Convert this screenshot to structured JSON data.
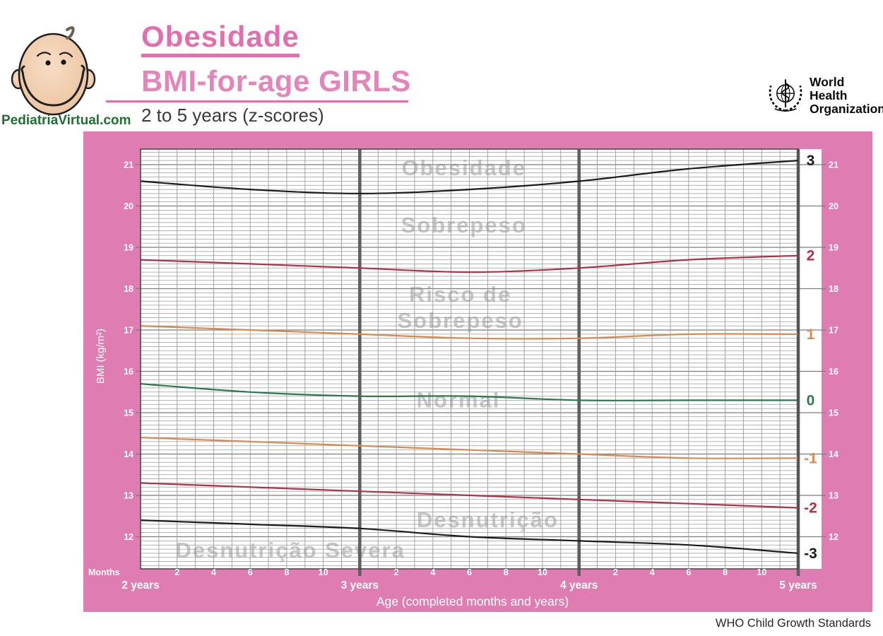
{
  "header": {
    "site": "PediatriaVirtual.com",
    "title": "Obesidade",
    "subtitle": "BMI-for-age GIRLS",
    "age_range": "2 to 5 years (z-scores)",
    "who_line1": "World Health",
    "who_line2": "Organization"
  },
  "footer": {
    "credit": "WHO Child Growth Standards"
  },
  "colors": {
    "band_pink": "#df7db2",
    "title_pink": "#e26fad",
    "grid_minor": "#9a9a9a",
    "grid_major": "#7c7c7c",
    "year_line": "#606060",
    "plot_border": "#4a4a4a",
    "watermark": "#c7c7c7",
    "axis_text": "#ffffff",
    "z3_black": "#1c1c1c",
    "z2_red": "#b23048",
    "z1_orange": "#d8894f",
    "z0_green": "#2b7a4e"
  },
  "chart_data": {
    "type": "line",
    "title": "Obesidade — BMI-for-age GIRLS, 2 to 5 years (z-scores)",
    "xlabel": "Age (completed months and years)",
    "ylabel": "BMI (kg/m²)",
    "x_axis_unit_label": "Months",
    "x_months": [
      24,
      30,
      36,
      42,
      48,
      54,
      60
    ],
    "xlim_months": [
      24,
      60
    ],
    "ylim": [
      11.2,
      21.4
    ],
    "y_ticks": [
      21,
      20,
      19,
      18,
      17,
      16,
      15,
      14,
      13,
      12
    ],
    "year_ticks": [
      {
        "month": 24,
        "label": "2 years"
      },
      {
        "month": 36,
        "label": "3 years"
      },
      {
        "month": 48,
        "label": "4 years"
      },
      {
        "month": 60,
        "label": "5 years"
      }
    ],
    "month_tick_offsets": [
      2,
      4,
      6,
      8,
      10
    ],
    "grid": "minor 0.1 BMI horizontal, 1 month vertical",
    "legend_position": "right-strip",
    "series": [
      {
        "name": "3",
        "color": "#1c1c1c",
        "values": [
          20.6,
          20.4,
          20.3,
          20.4,
          20.6,
          20.9,
          21.1
        ]
      },
      {
        "name": "2",
        "color": "#b23048",
        "values": [
          18.7,
          18.6,
          18.5,
          18.4,
          18.5,
          18.7,
          18.8
        ]
      },
      {
        "name": "1",
        "color": "#d8894f",
        "values": [
          17.1,
          17.0,
          16.9,
          16.8,
          16.8,
          16.9,
          16.9
        ]
      },
      {
        "name": "0",
        "color": "#2b7a4e",
        "values": [
          15.7,
          15.5,
          15.4,
          15.4,
          15.3,
          15.3,
          15.3
        ]
      },
      {
        "name": "-1",
        "color": "#d8894f",
        "values": [
          14.4,
          14.3,
          14.2,
          14.1,
          14.0,
          13.9,
          13.9
        ]
      },
      {
        "name": "-2",
        "color": "#b23048",
        "values": [
          13.3,
          13.2,
          13.1,
          13.0,
          12.9,
          12.8,
          12.7
        ]
      },
      {
        "name": "-3",
        "color": "#1c1c1c",
        "values": [
          12.4,
          12.3,
          12.2,
          12.0,
          11.9,
          11.8,
          11.6
        ]
      }
    ],
    "region_labels": [
      {
        "text": "Obesidade",
        "month": 41.7,
        "bmi": 20.93
      },
      {
        "text": "Sobrepeso",
        "month": 41.7,
        "bmi": 19.55
      },
      {
        "text": "Risco de",
        "month": 41.5,
        "bmi": 17.87
      },
      {
        "text": "Sobrepeso",
        "month": 41.5,
        "bmi": 17.24
      },
      {
        "text": "Normal",
        "month": 41.4,
        "bmi": 15.32
      },
      {
        "text": "Desnutrição",
        "month": 43.0,
        "bmi": 12.42
      },
      {
        "text": "Desnutrição Severa",
        "month": 32.2,
        "bmi": 11.68
      }
    ]
  }
}
